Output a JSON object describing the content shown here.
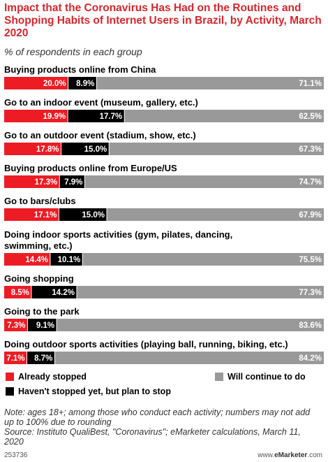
{
  "chart_data": {
    "type": "bar",
    "orientation": "horizontal",
    "stacked": true,
    "title": "Impact that the Coronavirus Has Had on the Routines and Shopping Habits of Internet Users in Brazil, by Activity, March 2020",
    "subtitle": "% of respondents in each group",
    "categories": [
      "Buying products online from China",
      "Go to an indoor event (museum, gallery, etc.)",
      "Go to an outdoor event (stadium, show, etc.)",
      "Buying products online from Europe/US",
      "Go to bars/clubs",
      "Doing indoor sports activities (gym, pilates, dancing, swimming, etc.)",
      "Going shopping",
      "Going to the park",
      "Doing outdoor sports activities (playing ball, running, biking, etc.)"
    ],
    "category_lines": [
      [
        "Buying products online from China"
      ],
      [
        "Go to an indoor event (museum, gallery, etc.)"
      ],
      [
        "Go to an outdoor event (stadium, show, etc.)"
      ],
      [
        "Buying products online from Europe/US"
      ],
      [
        "Go to bars/clubs"
      ],
      [
        "Doing indoor sports activities (gym, pilates, dancing,",
        "swimming, etc.)"
      ],
      [
        "Going shopping"
      ],
      [
        "Going to the park"
      ],
      [
        "Doing outdoor sports activities (playing ball, running, biking, etc.)"
      ]
    ],
    "series": [
      {
        "name": "Already stopped",
        "color": "#ed1c24",
        "values": [
          20.0,
          19.9,
          17.8,
          17.3,
          17.1,
          14.4,
          8.5,
          7.3,
          7.1
        ],
        "labels": [
          "20.0%",
          "19.9%",
          "17.8%",
          "17.3%",
          "17.1%",
          "14.4%",
          "8.5%",
          "7.3%",
          "7.1%"
        ]
      },
      {
        "name": "Haven't stopped yet, but plan to stop",
        "color": "#000000",
        "values": [
          8.9,
          17.7,
          15.0,
          7.9,
          15.0,
          10.1,
          14.2,
          9.1,
          8.7
        ],
        "labels": [
          "8.9%",
          "17.7%",
          "15.0%",
          "7.9%",
          "15.0%",
          "10.1%",
          "14.2%",
          "9.1%",
          "8.7%"
        ]
      },
      {
        "name": "Will continue to do",
        "color": "#999999",
        "values": [
          71.1,
          62.5,
          67.3,
          74.7,
          67.9,
          75.5,
          77.3,
          83.6,
          84.2
        ],
        "labels": [
          "71.1%",
          "62.5%",
          "67.3%",
          "74.7%",
          "67.9%",
          "75.5%",
          "77.3%",
          "83.6%",
          "84.2%"
        ]
      }
    ],
    "xlim": [
      0,
      100
    ]
  },
  "note": "Note: ages 18+; among those who conduct each activity; numbers may not add up to 100% due to rounding",
  "source": "Source: Instituto QualiBest, \"Coronavirus\"; eMarketer calculations, March 11, 2020",
  "footer": {
    "chart_id": "253736",
    "copyright_prefix": "www.",
    "copyright_brand": "eMarketer",
    "copyright_suffix": ".com"
  }
}
